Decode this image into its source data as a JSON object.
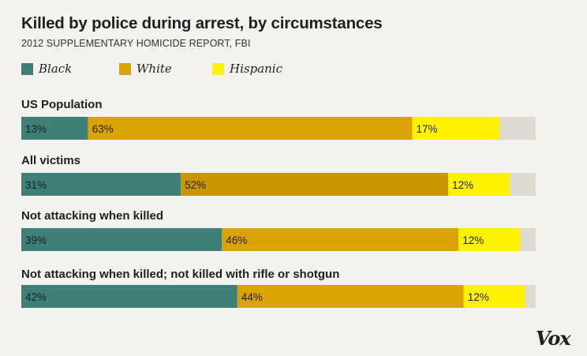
{
  "title": "Killed by police during arrest, by circumstances",
  "subtitle": "2012 SUPPLEMENTARY HOMICIDE REPORT, FBI",
  "logo_text": "Vox",
  "colors": {
    "black": "#3f7f78",
    "white": "#dba302",
    "white_alt": "#c99503",
    "hispanic": "#fff200",
    "other": "#dedad1",
    "background": "#f4f2ee"
  },
  "chart_data": {
    "type": "bar",
    "orientation": "horizontal",
    "stacked": true,
    "normalized": true,
    "title": "Killed by police during arrest, by circumstances",
    "subtitle": "2012 SUPPLEMENTARY HOMICIDE REPORT, FBI",
    "legend_position": "top-left",
    "categories": [
      "US Population",
      "All victims",
      "Not attacking when killed",
      "Not attacking when killed; not killed with rifle or shotgun"
    ],
    "series": [
      {
        "name": "Black",
        "key": "black",
        "values": [
          13,
          31,
          39,
          42
        ],
        "labels": [
          "13%",
          "31%",
          "39%",
          "42%"
        ]
      },
      {
        "name": "White",
        "key": "white",
        "values": [
          63,
          52,
          46,
          44
        ],
        "labels": [
          "63%",
          "52%",
          "46%",
          "44%"
        ]
      },
      {
        "name": "Hispanic",
        "key": "hispanic",
        "values": [
          17,
          12,
          12,
          12
        ],
        "labels": [
          "17%",
          "12%",
          "12%",
          "12%"
        ]
      },
      {
        "key": "other",
        "values": [
          7,
          5,
          3,
          2
        ],
        "labels": [
          "",
          "",
          "",
          ""
        ]
      }
    ]
  }
}
